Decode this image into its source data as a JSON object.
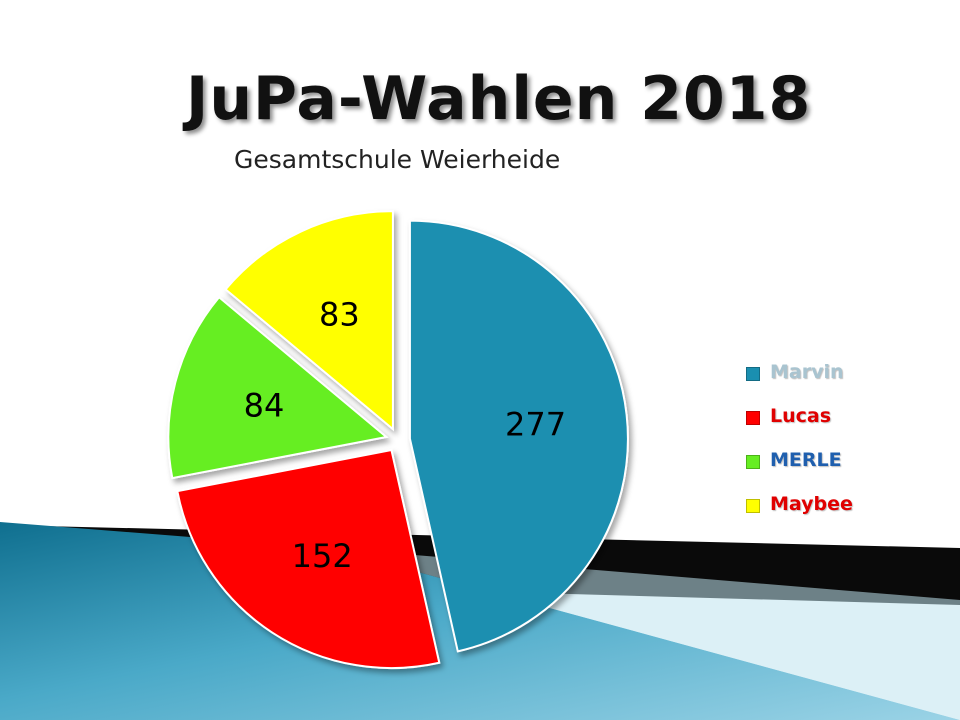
{
  "title": "JuPa-Wahlen 2018",
  "subtitle": "Gesamtschule Weierheide",
  "chart_data": {
    "type": "pie",
    "title": "JuPa-Wahlen 2018",
    "subtitle": "Gesamtschule Weierheide",
    "categories": [
      "Marvin",
      "Lucas",
      "MERLE",
      "Maybee"
    ],
    "values": [
      277,
      152,
      84,
      83
    ],
    "colors": [
      "#1a8fb0",
      "#ff0000",
      "#66ee22",
      "#ffff00"
    ],
    "label_colors": [
      "#a9c4d0",
      "#e00000",
      "#1f5fae",
      "#e00000"
    ],
    "exploded": true,
    "legend_position": "right",
    "data_labels": true
  }
}
